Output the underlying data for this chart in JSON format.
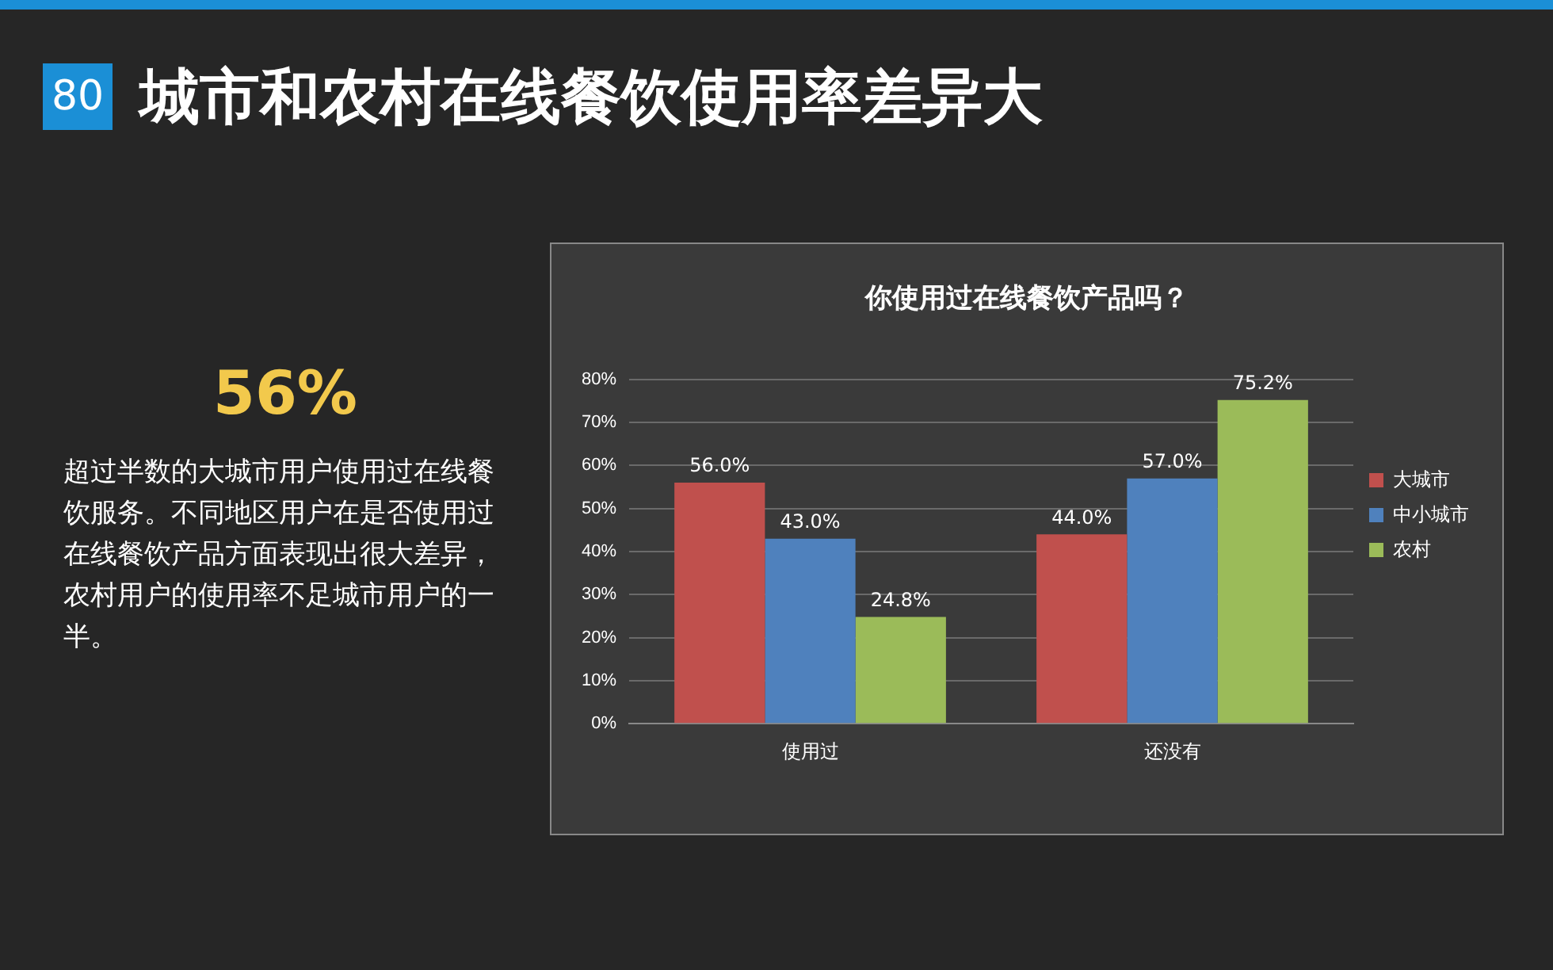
{
  "chart_data": {
    "type": "bar",
    "title": "你使用过在线餐饮产品吗？",
    "categories": [
      "使用过",
      "还没有"
    ],
    "series": [
      {
        "name": "大城市",
        "color": "#c0504d",
        "values": [
          56.0,
          44.0
        ],
        "value_labels": [
          "56.0%",
          "44.0%"
        ]
      },
      {
        "name": "中小城市",
        "color": "#4f81bd",
        "values": [
          43.0,
          57.0
        ],
        "value_labels": [
          "43.0%",
          "57.0%"
        ]
      },
      {
        "name": "农村",
        "color": "#9bbb59",
        "values": [
          24.8,
          75.2
        ],
        "value_labels": [
          "24.8%",
          "75.2%"
        ]
      }
    ],
    "ylim": [
      0,
      80
    ],
    "yticks": [
      {
        "value": 0,
        "label": "0%"
      },
      {
        "value": 10,
        "label": "10%"
      },
      {
        "value": 20,
        "label": "20%"
      },
      {
        "value": 30,
        "label": "30%"
      },
      {
        "value": 40,
        "label": "40%"
      },
      {
        "value": 50,
        "label": "50%"
      },
      {
        "value": 60,
        "label": "60%"
      },
      {
        "value": 70,
        "label": "70%"
      },
      {
        "value": 80,
        "label": "80%"
      }
    ],
    "grid": "y",
    "legend": "right",
    "annotations": [
      "80",
      "城市和农村在线餐饮使用率差异大",
      "56%",
      "超过半数的大城市用户使用过在线餐饮服务。不同地区用户在是否使用过在线餐饮产品方面表现出很大差异，农村用户的使用率不足城市用户的一半。"
    ]
  }
}
